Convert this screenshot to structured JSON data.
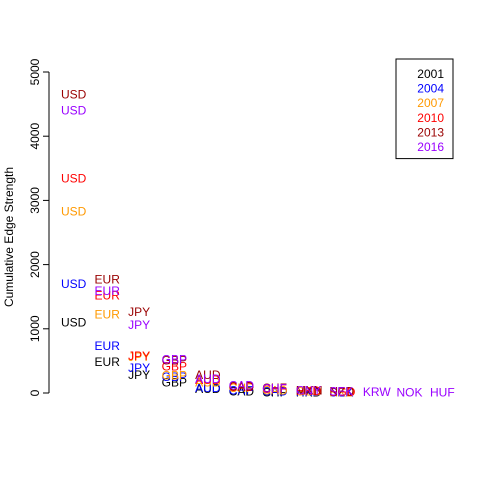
{
  "chart_data": {
    "type": "scatter",
    "title": "",
    "xlabel": "",
    "ylabel": "Cumulative Edge Strength",
    "ylim": [
      0,
      5000
    ],
    "yticks": [
      0,
      1000,
      2000,
      3000,
      4000,
      5000
    ],
    "legend_position": "top-right",
    "series": [
      {
        "name": "2001",
        "color": "#000000",
        "points": [
          {
            "label": "USD",
            "x": 1,
            "y": 1100
          },
          {
            "label": "EUR",
            "x": 2,
            "y": 480
          },
          {
            "label": "JPY",
            "x": 3,
            "y": 280
          },
          {
            "label": "GBP",
            "x": 4,
            "y": 165
          },
          {
            "label": "AUD",
            "x": 5,
            "y": 60
          },
          {
            "label": "CAD",
            "x": 6,
            "y": 20
          },
          {
            "label": "CHF",
            "x": 7,
            "y": 10
          },
          {
            "label": "HKD",
            "x": 8,
            "y": 5
          }
        ]
      },
      {
        "name": "2004",
        "color": "#0000ff",
        "points": [
          {
            "label": "USD",
            "x": 1,
            "y": 1700
          },
          {
            "label": "EUR",
            "x": 2,
            "y": 730
          },
          {
            "label": "JPY",
            "x": 3,
            "y": 390
          },
          {
            "label": "GBP",
            "x": 4,
            "y": 250
          },
          {
            "label": "AUD",
            "x": 5,
            "y": 80
          },
          {
            "label": "CHF",
            "x": 6,
            "y": 40
          },
          {
            "label": "CAD",
            "x": 7,
            "y": 25
          },
          {
            "label": "HKD",
            "x": 8,
            "y": 15
          },
          {
            "label": "SEK",
            "x": 9,
            "y": 10
          }
        ]
      },
      {
        "name": "2007",
        "color": "#ff9900",
        "points": [
          {
            "label": "USD",
            "x": 1,
            "y": 2830
          },
          {
            "label": "EUR",
            "x": 2,
            "y": 1220
          },
          {
            "label": "JPY",
            "x": 3,
            "y": 560
          },
          {
            "label": "GBP",
            "x": 4,
            "y": 270
          },
          {
            "label": "AUD",
            "x": 5,
            "y": 160
          },
          {
            "label": "CHF",
            "x": 6,
            "y": 80
          },
          {
            "label": "CAD",
            "x": 7,
            "y": 40
          },
          {
            "label": "SGD",
            "x": 8,
            "y": 20
          },
          {
            "label": "HKD",
            "x": 9,
            "y": 10
          }
        ]
      },
      {
        "name": "2010",
        "color": "#ff0000",
        "points": [
          {
            "label": "USD",
            "x": 1,
            "y": 3340
          },
          {
            "label": "EUR",
            "x": 2,
            "y": 1520
          },
          {
            "label": "JPY",
            "x": 3,
            "y": 580
          },
          {
            "label": "GBP",
            "x": 4,
            "y": 410
          },
          {
            "label": "AUD",
            "x": 5,
            "y": 200
          },
          {
            "label": "CAD",
            "x": 6,
            "y": 90
          },
          {
            "label": "CHF",
            "x": 7,
            "y": 60
          },
          {
            "label": "HKD",
            "x": 8,
            "y": 30
          },
          {
            "label": "SGD",
            "x": 9,
            "y": 15
          }
        ]
      },
      {
        "name": "2013",
        "color": "#990000",
        "points": [
          {
            "label": "USD",
            "x": 1,
            "y": 4650
          },
          {
            "label": "EUR",
            "x": 2,
            "y": 1770
          },
          {
            "label": "JPY",
            "x": 3,
            "y": 1260
          },
          {
            "label": "GBP",
            "x": 4,
            "y": 510
          },
          {
            "label": "AUD",
            "x": 5,
            "y": 280
          },
          {
            "label": "CAD",
            "x": 6,
            "y": 100
          },
          {
            "label": "CHF",
            "x": 7,
            "y": 80
          },
          {
            "label": "MXN",
            "x": 8,
            "y": 40
          },
          {
            "label": "NZD",
            "x": 9,
            "y": 20
          }
        ]
      },
      {
        "name": "2016",
        "color": "#9900ff",
        "points": [
          {
            "label": "USD",
            "x": 1,
            "y": 4400
          },
          {
            "label": "EUR",
            "x": 2,
            "y": 1590
          },
          {
            "label": "JPY",
            "x": 3,
            "y": 1060
          },
          {
            "label": "GBP",
            "x": 4,
            "y": 520
          },
          {
            "label": "AUD",
            "x": 5,
            "y": 220
          },
          {
            "label": "CAD",
            "x": 6,
            "y": 120
          },
          {
            "label": "CHF",
            "x": 7,
            "y": 70
          },
          {
            "label": "CNY",
            "x": 8,
            "y": 40
          },
          {
            "label": "SEK",
            "x": 9,
            "y": 20
          },
          {
            "label": "KRW",
            "x": 10,
            "y": 15
          },
          {
            "label": "NOK",
            "x": 11,
            "y": 10
          },
          {
            "label": "HUF",
            "x": 12,
            "y": 5
          }
        ]
      }
    ]
  }
}
